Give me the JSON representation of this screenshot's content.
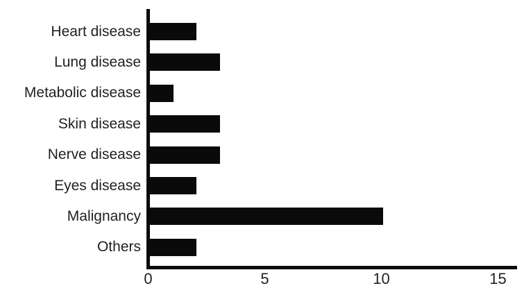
{
  "chart_data": {
    "type": "bar",
    "orientation": "horizontal",
    "title": "",
    "xlabel": "",
    "ylabel": "",
    "categories": [
      "Heart disease",
      "Lung disease",
      "Metabolic disease",
      "Skin disease",
      "Nerve disease",
      "Eyes disease",
      "Malignancy",
      "Others"
    ],
    "values": [
      2,
      3,
      1,
      3,
      3,
      2,
      10,
      2
    ],
    "xticks": [
      0,
      5,
      10,
      15
    ],
    "xlim": [
      0,
      15.8
    ],
    "grid": false,
    "legend": null,
    "bar_color": "#0a0a0a",
    "axis_color": "#0a0a0a",
    "text_color": "#231f20",
    "background": "#ffffff"
  }
}
